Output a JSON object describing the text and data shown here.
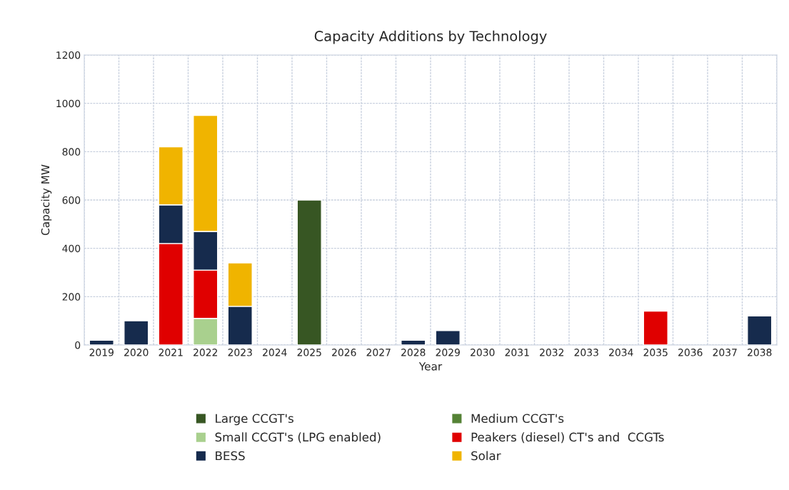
{
  "chart_data": {
    "type": "bar",
    "title": "Capacity Additions by Technology",
    "xlabel": "Year",
    "ylabel": "Capacity MW",
    "categories": [
      "2019",
      "2020",
      "2021",
      "2022",
      "2023",
      "2024",
      "2025",
      "2026",
      "2027",
      "2028",
      "2029",
      "2030",
      "2031",
      "2032",
      "2033",
      "2034",
      "2035",
      "2036",
      "2037",
      "2038"
    ],
    "stacked": true,
    "series": [
      {
        "name": "Large CCGT's",
        "color": "#375623",
        "values": [
          null,
          null,
          null,
          null,
          null,
          null,
          600,
          null,
          null,
          null,
          null,
          null,
          null,
          null,
          null,
          null,
          null,
          null,
          null,
          null
        ]
      },
      {
        "name": "Medium CCGT's",
        "color": "#548235",
        "values": [
          null,
          null,
          null,
          null,
          null,
          null,
          null,
          null,
          null,
          null,
          null,
          null,
          null,
          null,
          null,
          null,
          null,
          null,
          null,
          null
        ]
      },
      {
        "name": "Small CCGT's (LPG enabled)",
        "color": "#a9d08e",
        "values": [
          null,
          null,
          null,
          110,
          null,
          null,
          null,
          null,
          null,
          null,
          null,
          null,
          null,
          null,
          null,
          null,
          null,
          null,
          null,
          null
        ]
      },
      {
        "name": "Peakers (diesel) CT's and  CCGTs",
        "color": "#e00000",
        "values": [
          null,
          null,
          420,
          200,
          null,
          null,
          null,
          null,
          null,
          null,
          null,
          null,
          null,
          null,
          null,
          null,
          140,
          null,
          null,
          null
        ]
      },
      {
        "name": "BESS",
        "color": "#162b4d",
        "values": [
          20,
          100,
          160,
          160,
          160,
          null,
          null,
          null,
          null,
          20,
          60,
          null,
          null,
          null,
          null,
          null,
          null,
          null,
          null,
          120
        ]
      },
      {
        "name": "Solar",
        "color": "#f0b400",
        "values": [
          null,
          null,
          240,
          480,
          180,
          null,
          null,
          null,
          null,
          null,
          null,
          null,
          null,
          null,
          null,
          null,
          null,
          null,
          null,
          null
        ]
      }
    ],
    "ylim": [
      0,
      1200
    ],
    "yticks": [
      0,
      200,
      400,
      600,
      800,
      1000,
      1200
    ],
    "grid": true,
    "legend": "bottom"
  }
}
